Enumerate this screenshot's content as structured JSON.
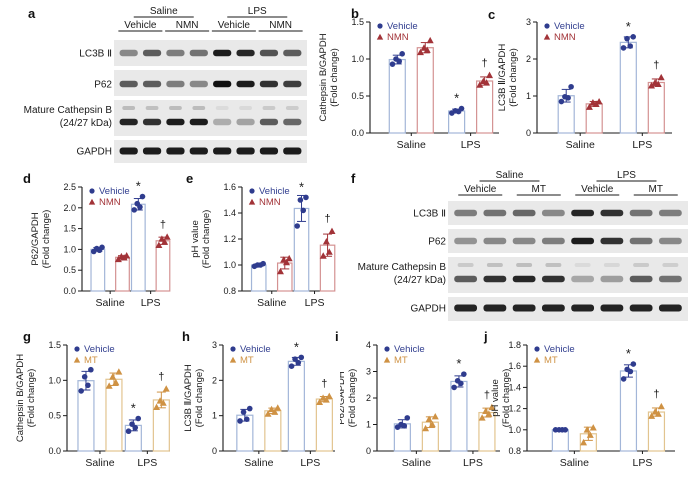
{
  "palettes": {
    "nmn": {
      "vehicle": "#2f3c8e",
      "treatment": "#a23338",
      "vehicle_bar": "#a3b6d8",
      "treatment_bar": "#d49292"
    },
    "mt": {
      "vehicle": "#2f3c8e",
      "treatment": "#cf9244",
      "vehicle_bar": "#a3b6d8",
      "treatment_bar": "#e2c48f"
    }
  },
  "blots": [
    {
      "id": "a",
      "letter": "a",
      "group_labels": [
        "Saline",
        "LPS"
      ],
      "treatment_labels": [
        "Vehicle",
        "NMN",
        "Vehicle",
        "NMN"
      ],
      "rows": [
        {
          "label": "LC3B Ⅱ",
          "intensities": [
            0.45,
            0.65,
            0.5,
            0.55,
            0.95,
            0.9,
            0.7,
            0.65
          ]
        },
        {
          "label": "P62",
          "intensities": [
            0.65,
            0.65,
            0.5,
            0.45,
            1.0,
            0.95,
            0.85,
            0.8
          ]
        },
        {
          "label": "Mature Cathepsin B",
          "label2": "(24/27 kDa)",
          "intensities": [
            0.92,
            0.85,
            0.95,
            0.95,
            0.28,
            0.32,
            0.65,
            0.6
          ]
        },
        {
          "label": "GAPDH",
          "intensities": [
            0.95,
            0.95,
            0.95,
            0.95,
            0.95,
            0.95,
            0.95,
            0.95
          ]
        }
      ]
    },
    {
      "id": "f",
      "letter": "f",
      "group_labels": [
        "Saline",
        "LPS"
      ],
      "treatment_labels": [
        "Vehicle",
        "MT",
        "Vehicle",
        "MT"
      ],
      "rows": [
        {
          "label": "LC3B Ⅱ",
          "intensities": [
            0.5,
            0.55,
            0.6,
            0.45,
            0.9,
            0.85,
            0.55,
            0.5
          ]
        },
        {
          "label": "P62",
          "intensities": [
            0.4,
            0.45,
            0.45,
            0.5,
            0.95,
            0.85,
            0.55,
            0.45
          ]
        },
        {
          "label": "Mature Cathepsin B",
          "label2": "(24/27 kDa)",
          "intensities": [
            0.65,
            0.85,
            0.9,
            0.85,
            0.3,
            0.35,
            0.65,
            0.55
          ]
        },
        {
          "label": "GAPDH",
          "intensities": [
            0.92,
            0.92,
            0.92,
            0.92,
            0.92,
            0.92,
            0.92,
            0.92
          ]
        }
      ]
    }
  ],
  "chart_data": [
    {
      "id": "b",
      "letter": "b",
      "type": "bar",
      "palette": "nmn",
      "ylabel": "Cathepsin B/GAPDH",
      "ylabel2": "(Fold change)",
      "xlabel": "",
      "ylim": [
        0,
        1.5
      ],
      "ystep": 0.5,
      "decimals": 1,
      "categories": [
        "Saline",
        "LPS"
      ],
      "series": [
        {
          "name": "Vehicle",
          "marker": "circle",
          "points": {
            "Saline": [
              0.97,
              1.07,
              0.93,
              1.0
            ],
            "LPS": [
              0.3,
              0.33,
              0.27,
              0.29
            ]
          }
        },
        {
          "name": "NMN",
          "marker": "triangle",
          "points": {
            "Saline": [
              1.12,
              1.25,
              1.09,
              1.15
            ],
            "LPS": [
              0.68,
              0.78,
              0.65,
              0.7
            ]
          }
        }
      ],
      "sig": [
        {
          "category": "LPS",
          "series": "Vehicle",
          "symbol": "*"
        },
        {
          "category": "LPS",
          "series": "NMN",
          "symbol": "†"
        }
      ]
    },
    {
      "id": "c",
      "letter": "c",
      "type": "bar",
      "palette": "nmn",
      "ylabel": "LC3B Ⅱ/GAPDH",
      "ylabel2": "(Fold change)",
      "xlabel": "",
      "ylim": [
        0,
        3
      ],
      "ystep": 1,
      "decimals": 0,
      "categories": [
        "Saline",
        "LPS"
      ],
      "series": [
        {
          "name": "Vehicle",
          "marker": "circle",
          "points": {
            "Saline": [
              0.95,
              1.25,
              0.85,
              0.98
            ],
            "LPS": [
              2.35,
              2.6,
              2.3,
              2.55
            ]
          }
        },
        {
          "name": "NMN",
          "marker": "triangle",
          "points": {
            "Saline": [
              0.78,
              0.85,
              0.7,
              0.82
            ],
            "LPS": [
              1.32,
              1.5,
              1.28,
              1.36
            ]
          }
        }
      ],
      "sig": [
        {
          "category": "LPS",
          "series": "Vehicle",
          "symbol": "*"
        },
        {
          "category": "LPS",
          "series": "NMN",
          "symbol": "†"
        }
      ]
    },
    {
      "id": "d",
      "letter": "d",
      "type": "bar",
      "palette": "nmn",
      "ylabel": "P62/GAPDH",
      "ylabel2": "(Fold change)",
      "xlabel": "",
      "ylim": [
        0,
        2.5
      ],
      "ystep": 0.5,
      "decimals": 1,
      "categories": [
        "Saline",
        "LPS"
      ],
      "series": [
        {
          "name": "Vehicle",
          "marker": "circle",
          "points": {
            "Saline": [
              0.98,
              1.05,
              0.95,
              1.02
            ],
            "LPS": [
              2.02,
              2.27,
              1.95,
              2.1
            ]
          }
        },
        {
          "name": "NMN",
          "marker": "triangle",
          "points": {
            "Saline": [
              0.8,
              0.85,
              0.76,
              0.83
            ],
            "LPS": [
              1.18,
              1.3,
              1.1,
              1.25
            ]
          }
        }
      ],
      "sig": [
        {
          "category": "LPS",
          "series": "Vehicle",
          "symbol": "*"
        },
        {
          "category": "LPS",
          "series": "NMN",
          "symbol": "†"
        }
      ]
    },
    {
      "id": "e",
      "letter": "e",
      "type": "bar",
      "palette": "nmn",
      "ylabel": "pH value",
      "ylabel2": "(Fold change)",
      "xlabel": "",
      "ylim": [
        0.8,
        1.6
      ],
      "ystep": 0.2,
      "decimals": 1,
      "categories": [
        "Saline",
        "LPS"
      ],
      "series": [
        {
          "name": "Vehicle",
          "marker": "circle",
          "points": {
            "Saline": [
              1.0,
              1.01,
              0.99,
              1.0
            ],
            "LPS": [
              1.42,
              1.52,
              1.3,
              1.5
            ]
          }
        },
        {
          "name": "NMN",
          "marker": "triangle",
          "points": {
            "Saline": [
              1.02,
              1.05,
              0.95,
              1.04
            ],
            "LPS": [
              1.1,
              1.26,
              1.07,
              1.18
            ]
          }
        }
      ],
      "sig": [
        {
          "category": "LPS",
          "series": "Vehicle",
          "symbol": "*"
        },
        {
          "category": "LPS",
          "series": "NMN",
          "symbol": "†"
        }
      ]
    },
    {
      "id": "g",
      "letter": "g",
      "type": "bar",
      "palette": "mt",
      "ylabel": "Cathepsin B/GAPDH",
      "ylabel2": "(Fold change)",
      "xlabel": "",
      "ylim": [
        0,
        1.5
      ],
      "ystep": 0.5,
      "decimals": 1,
      "categories": [
        "Saline",
        "LPS"
      ],
      "series": [
        {
          "name": "Vehicle",
          "marker": "circle",
          "points": {
            "Saline": [
              0.93,
              1.15,
              0.85,
              1.05
            ],
            "LPS": [
              0.33,
              0.46,
              0.28,
              0.38
            ]
          }
        },
        {
          "name": "MT",
          "marker": "triangle",
          "points": {
            "Saline": [
              0.97,
              1.12,
              0.92,
              1.05
            ],
            "LPS": [
              0.68,
              0.88,
              0.62,
              0.71
            ]
          }
        }
      ],
      "sig": [
        {
          "category": "LPS",
          "series": "Vehicle",
          "symbol": "*"
        },
        {
          "category": "LPS",
          "series": "MT",
          "symbol": "†"
        }
      ]
    },
    {
      "id": "h",
      "letter": "h",
      "type": "bar",
      "palette": "mt",
      "ylabel": "LC3B Ⅱ/GAPDH",
      "ylabel2": "(Fold change)",
      "xlabel": "",
      "ylim": [
        0,
        3
      ],
      "ystep": 1,
      "decimals": 0,
      "categories": [
        "Saline",
        "LPS"
      ],
      "series": [
        {
          "name": "Vehicle",
          "marker": "circle",
          "points": {
            "Saline": [
              0.9,
              1.2,
              0.85,
              1.1
            ],
            "LPS": [
              2.5,
              2.65,
              2.4,
              2.6
            ]
          }
        },
        {
          "name": "MT",
          "marker": "triangle",
          "points": {
            "Saline": [
              1.1,
              1.22,
              1.05,
              1.18
            ],
            "LPS": [
              1.45,
              1.55,
              1.38,
              1.5
            ]
          }
        }
      ],
      "sig": [
        {
          "category": "LPS",
          "series": "Vehicle",
          "symbol": "*"
        },
        {
          "category": "LPS",
          "series": "MT",
          "symbol": "†"
        }
      ]
    },
    {
      "id": "i",
      "letter": "i",
      "type": "bar",
      "palette": "mt",
      "ylabel": "P62/GAPDH",
      "ylabel2": "(Fold change)",
      "xlabel": "",
      "ylim": [
        0,
        4
      ],
      "ystep": 1,
      "decimals": 0,
      "categories": [
        "Saline",
        "LPS"
      ],
      "series": [
        {
          "name": "Vehicle",
          "marker": "circle",
          "points": {
            "Saline": [
              0.95,
              1.25,
              0.9,
              1.0
            ],
            "LPS": [
              2.55,
              2.9,
              2.4,
              2.65
            ]
          }
        },
        {
          "name": "MT",
          "marker": "triangle",
          "points": {
            "Saline": [
              1.0,
              1.3,
              0.85,
              1.2
            ],
            "LPS": [
              1.4,
              1.65,
              1.25,
              1.5
            ]
          }
        }
      ],
      "sig": [
        {
          "category": "LPS",
          "series": "Vehicle",
          "symbol": "*"
        },
        {
          "category": "LPS",
          "series": "MT",
          "symbol": "†"
        }
      ]
    },
    {
      "id": "j",
      "letter": "j",
      "type": "bar",
      "palette": "mt",
      "ylabel": "pH value",
      "ylabel2": "(Fold change)",
      "xlabel": "",
      "ylim": [
        0.8,
        1.8
      ],
      "ystep": 0.2,
      "decimals": 1,
      "categories": [
        "Saline",
        "LPS"
      ],
      "series": [
        {
          "name": "Vehicle",
          "marker": "circle",
          "points": {
            "Saline": [
              1.0,
              1.0,
              1.0,
              1.0
            ],
            "LPS": [
              1.55,
              1.62,
              1.48,
              1.57
            ]
          }
        },
        {
          "name": "MT",
          "marker": "triangle",
          "points": {
            "Saline": [
              0.95,
              1.02,
              0.88,
              1.0
            ],
            "LPS": [
              1.15,
              1.22,
              1.13,
              1.17
            ]
          }
        }
      ],
      "sig": [
        {
          "category": "LPS",
          "series": "Vehicle",
          "symbol": "*"
        },
        {
          "category": "LPS",
          "series": "MT",
          "symbol": "†"
        }
      ]
    }
  ]
}
